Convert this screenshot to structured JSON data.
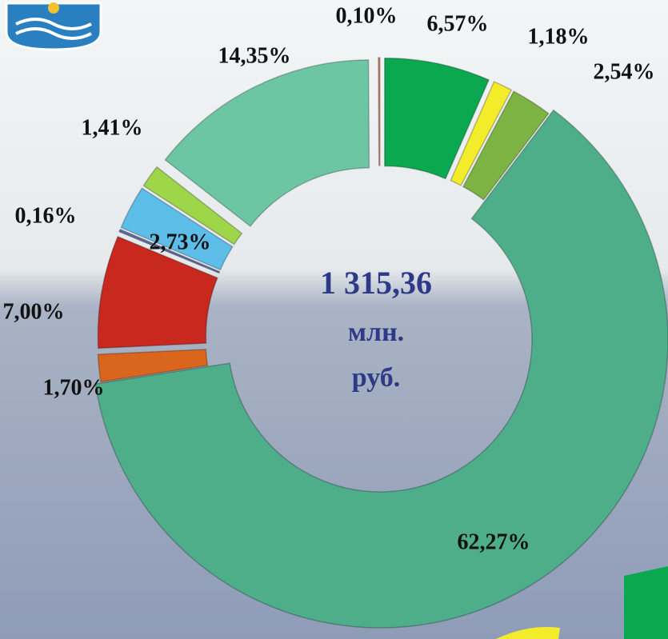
{
  "chart_data": {
    "type": "donut",
    "categories": null,
    "values": [
      6.57,
      1.18,
      2.54,
      62.27,
      1.7,
      7.0,
      0.16,
      2.73,
      1.41,
      14.35,
      0.1
    ],
    "value_labels": [
      "6,57%",
      "1,18%",
      "2,54%",
      "62,27%",
      "1,70%",
      "7,00%",
      "0,16%",
      "2,73%",
      "1,41%",
      "14,35%",
      "0,10%"
    ],
    "colors": [
      "#0aa84f",
      "#f2ec2a",
      "#7cb342",
      "#4fae8a",
      "#d9661c",
      "#c8281e",
      "#5a6fa8",
      "#5bbde8",
      "#9ed64a",
      "#6cc6a4",
      "#e0826a"
    ],
    "center_text": [
      "1 315,36",
      "млн.",
      "руб."
    ]
  }
}
